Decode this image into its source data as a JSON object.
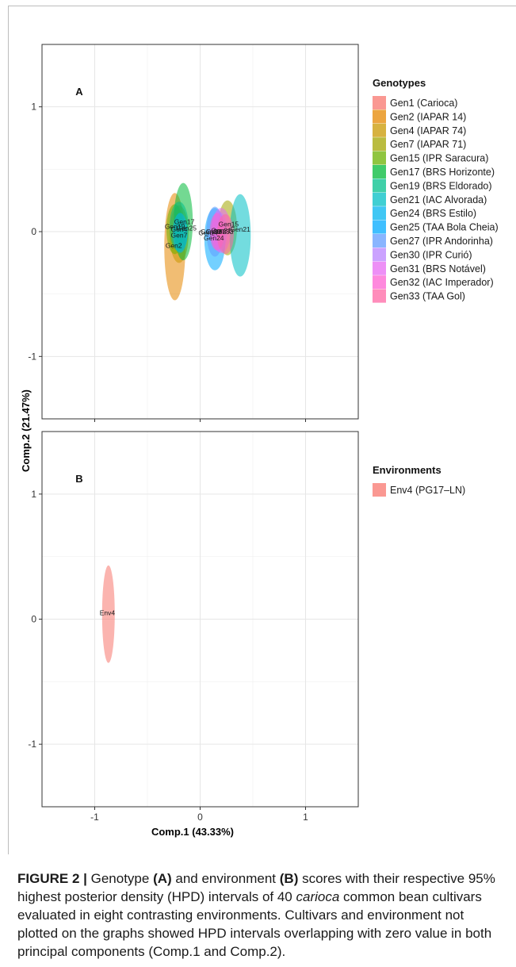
{
  "figure": {
    "y_axis_label": "Comp.2 (21.47%)",
    "x_axis_label": "Comp.1 (43.33%)"
  },
  "chart_data": [
    {
      "type": "scatter",
      "panel_label": "A",
      "xlabel": "Comp.1 (43.33%)",
      "ylabel": "Comp.2 (21.47%)",
      "xlim": [
        -1.5,
        1.5
      ],
      "ylim": [
        -1.5,
        1.5
      ],
      "x_ticks": [
        -1,
        0,
        1
      ],
      "y_ticks": [
        -1,
        0,
        1
      ],
      "grid": true,
      "legend_title": "Genotypes",
      "legend_position": "right",
      "series": [
        {
          "name": "Gen1 (Carioca)",
          "color": "#F8766D"
        },
        {
          "name": "Gen2 (IAPAR 14)",
          "color": "#E58700"
        },
        {
          "name": "Gen4 (IAPAR 74)",
          "color": "#C99800"
        },
        {
          "name": "Gen7 (IAPAR 71)",
          "color": "#A3A500"
        },
        {
          "name": "Gen15 (IPR  Saracura)",
          "color": "#6BB100"
        },
        {
          "name": "Gen17 (BRS Horizonte)",
          "color": "#00BA38"
        },
        {
          "name": "Gen19 (BRS Eldorado)",
          "color": "#00C08B"
        },
        {
          "name": "Gen21 (IAC Alvorada)",
          "color": "#00BFC4"
        },
        {
          "name": "Gen24 (BRS Estilo)",
          "color": "#00B4F0"
        },
        {
          "name": "Gen25 (TAA Bola Cheia)",
          "color": "#00A9FF"
        },
        {
          "name": "Gen27 (IPR Andorinha)",
          "color": "#619CFF"
        },
        {
          "name": "Gen30 (IPR Curió)",
          "color": "#B983FF"
        },
        {
          "name": "Gen31 (BRS Notável)",
          "color": "#E76BF3"
        },
        {
          "name": "Gen32 (IAC Imperador)",
          "color": "#FD61D1"
        },
        {
          "name": "Gen33 (TAA Gol)",
          "color": "#FF67A4"
        }
      ],
      "ellipses": [
        {
          "color": "#E58700",
          "cx": -0.24,
          "cy": -0.12,
          "rx": 0.1,
          "ry": 0.43
        },
        {
          "color": "#C99800",
          "cx": -0.2,
          "cy": -0.02,
          "rx": 0.09,
          "ry": 0.23
        },
        {
          "color": "#A3A500",
          "cx": 0.26,
          "cy": 0.03,
          "rx": 0.09,
          "ry": 0.22
        },
        {
          "color": "#6BB100",
          "cx": -0.24,
          "cy": 0.02,
          "rx": 0.08,
          "ry": 0.2
        },
        {
          "color": "#00BA38",
          "cx": -0.16,
          "cy": 0.08,
          "rx": 0.09,
          "ry": 0.31
        },
        {
          "color": "#00C08B",
          "cx": -0.2,
          "cy": 0.04,
          "rx": 0.09,
          "ry": 0.2
        },
        {
          "color": "#00BFC4",
          "cx": 0.38,
          "cy": -0.03,
          "rx": 0.1,
          "ry": 0.33
        },
        {
          "color": "#00B4F0",
          "cx": -0.19,
          "cy": -0.01,
          "rx": 0.07,
          "ry": 0.16
        },
        {
          "color": "#00A9FF",
          "cx": 0.14,
          "cy": -0.06,
          "rx": 0.1,
          "ry": 0.25
        },
        {
          "color": "#619CFF",
          "cx": 0.14,
          "cy": 0.0,
          "rx": 0.08,
          "ry": 0.2
        },
        {
          "color": "#B983FF",
          "cx": 0.18,
          "cy": 0.0,
          "rx": 0.08,
          "ry": 0.16
        },
        {
          "color": "#E76BF3",
          "cx": 0.2,
          "cy": 0.01,
          "rx": 0.09,
          "ry": 0.18
        },
        {
          "color": "#FD61D1",
          "cx": 0.16,
          "cy": 0.0,
          "rx": 0.07,
          "ry": 0.15
        },
        {
          "color": "#FF67A4",
          "cx": 0.24,
          "cy": -0.02,
          "rx": 0.08,
          "ry": 0.16
        }
      ],
      "point_labels": [
        {
          "text": "Gen17",
          "x": -0.15,
          "y": 0.08
        },
        {
          "text": "Gen19",
          "x": -0.24,
          "y": 0.04
        },
        {
          "text": "Gen4",
          "x": -0.2,
          "y": 0.02
        },
        {
          "text": "Gen25",
          "x": -0.13,
          "y": 0.03
        },
        {
          "text": "Gen7",
          "x": -0.2,
          "y": -0.03
        },
        {
          "text": "Gen2",
          "x": -0.25,
          "y": -0.11
        },
        {
          "text": "Gen15",
          "x": 0.27,
          "y": 0.06
        },
        {
          "text": "Gen21",
          "x": 0.38,
          "y": 0.02
        },
        {
          "text": "Gen30",
          "x": 0.1,
          "y": 0.0
        },
        {
          "text": "Gen31",
          "x": 0.2,
          "y": 0.01
        },
        {
          "text": "Gen32",
          "x": 0.15,
          "y": 0.0
        },
        {
          "text": "Gen33",
          "x": 0.22,
          "y": 0.0
        },
        {
          "text": "Gen27",
          "x": 0.08,
          "y": -0.01
        },
        {
          "text": "Gen24",
          "x": 0.13,
          "y": -0.05
        }
      ]
    },
    {
      "type": "scatter",
      "panel_label": "B",
      "xlabel": "Comp.1 (43.33%)",
      "ylabel": "Comp.2 (21.47%)",
      "xlim": [
        -1.5,
        1.5
      ],
      "ylim": [
        -1.5,
        1.5
      ],
      "x_ticks": [
        -1,
        0,
        1
      ],
      "y_ticks": [
        -1,
        0,
        1
      ],
      "grid": true,
      "legend_title": "Environments",
      "legend_position": "right",
      "series": [
        {
          "name": "Env4 (PG17–LN)",
          "color": "#F8766D"
        }
      ],
      "ellipses": [
        {
          "color": "#F8766D",
          "cx": -0.87,
          "cy": 0.04,
          "rx": 0.06,
          "ry": 0.39
        }
      ],
      "point_labels": [
        {
          "text": "Env4",
          "x": -0.88,
          "y": 0.05
        }
      ]
    }
  ],
  "caption": {
    "prefix": "FIGURE 2 |",
    "t1": " Genotype ",
    "a": "(A)",
    "t2": " and environment ",
    "b": "(B)",
    "t3": " scores with their respective 95% highest posterior density (HPD) intervals of 40 ",
    "italic": "carioca",
    "t4": " common bean cultivars evaluated in eight contrasting environments. Cultivars and environment not plotted on the graphs showed HPD intervals overlapping with zero value in both principal components (Comp.1 and Comp.2)."
  }
}
